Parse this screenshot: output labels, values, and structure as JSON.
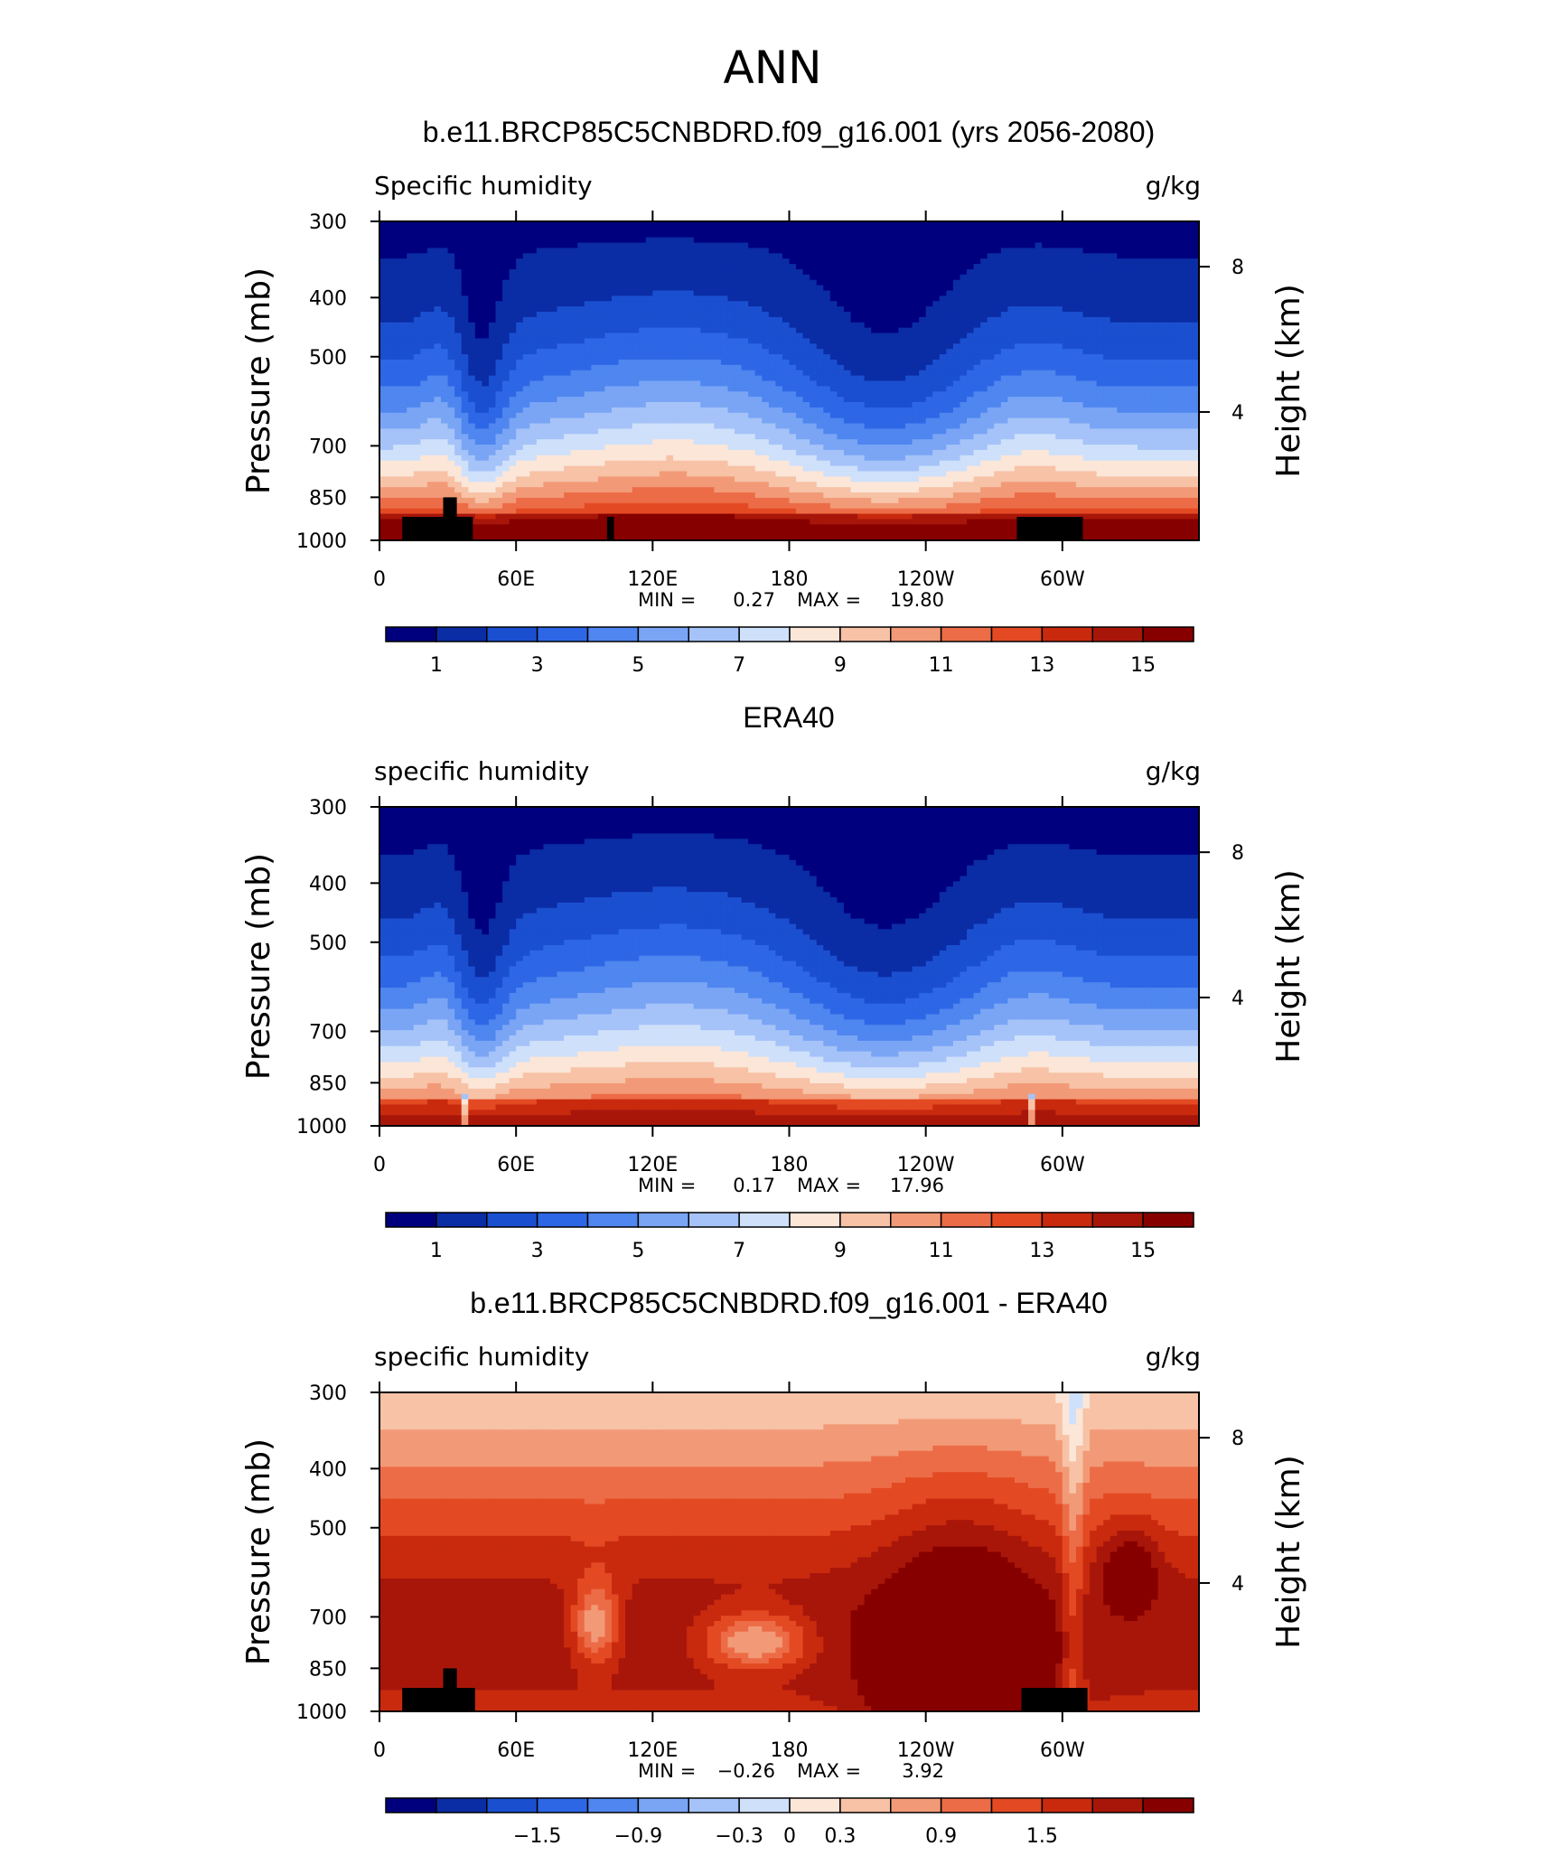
{
  "figure": {
    "title": "ANN"
  },
  "chart_data": [
    {
      "type": "heatmap",
      "title": "b.e11.BRCP85C5CNBDRD.f09_g16.001 (yrs 2056-2080)",
      "variable": "Specific humidity",
      "units": "g/kg",
      "ylabel": "Pressure (mb)",
      "ylabel_right": "Height (km)",
      "x_ticks": [
        "0",
        "60E",
        "120E",
        "180",
        "120W",
        "60W"
      ],
      "y_ticks": [
        "300",
        "400",
        "500",
        "700",
        "850",
        "1000"
      ],
      "y_ticks_right": [
        "8",
        "4"
      ],
      "ylim": [
        1000,
        300
      ],
      "stats": {
        "min_label": "MIN =",
        "min": "0.27",
        "max_label": "MAX =",
        "max": "19.80"
      },
      "colorbar_labels": [
        "1",
        "3",
        "5",
        "7",
        "9",
        "11",
        "13",
        "15"
      ],
      "field": "full"
    },
    {
      "type": "heatmap",
      "title": "ERA40",
      "variable": "specific humidity",
      "units": "g/kg",
      "ylabel": "Pressure (mb)",
      "ylabel_right": "Height (km)",
      "x_ticks": [
        "0",
        "60E",
        "120E",
        "180",
        "120W",
        "60W"
      ],
      "y_ticks": [
        "300",
        "400",
        "500",
        "700",
        "850",
        "1000"
      ],
      "y_ticks_right": [
        "8",
        "4"
      ],
      "ylim": [
        1000,
        300
      ],
      "stats": {
        "min_label": "MIN =",
        "min": "0.17",
        "max_label": "MAX =",
        "max": "17.96"
      },
      "colorbar_labels": [
        "1",
        "3",
        "5",
        "7",
        "9",
        "11",
        "13",
        "15"
      ],
      "field": "obs"
    },
    {
      "type": "heatmap",
      "title": "b.e11.BRCP85C5CNBDRD.f09_g16.001 - ERA40",
      "variable": "specific humidity",
      "units": "g/kg",
      "ylabel": "Pressure (mb)",
      "ylabel_right": "Height (km)",
      "x_ticks": [
        "0",
        "60E",
        "120E",
        "180",
        "120W",
        "60W"
      ],
      "y_ticks": [
        "300",
        "400",
        "500",
        "700",
        "850",
        "1000"
      ],
      "y_ticks_right": [
        "8",
        "4"
      ],
      "ylim": [
        1000,
        300
      ],
      "stats": {
        "min_label": "MIN =",
        "min": "−0.26",
        "max_label": "MAX =",
        "max": "3.92"
      },
      "colorbar_labels": [
        "−1.5",
        "−0.9",
        "−0.3",
        "0",
        "0.3",
        "0.9",
        "1.5"
      ],
      "field": "diff"
    }
  ],
  "colormap": [
    "#00007f",
    "#0a2ca5",
    "#1a4fd0",
    "#2d67e6",
    "#4f86ef",
    "#7aa5f5",
    "#a5c3f8",
    "#cfe0fb",
    "#fbe6d8",
    "#f7c2a6",
    "#f29a77",
    "#ec6c47",
    "#e34a23",
    "#c92a0e",
    "#a8160a",
    "#870000"
  ],
  "terrain_color": "#000000"
}
